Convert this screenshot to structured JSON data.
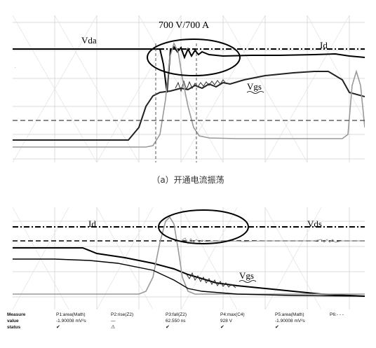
{
  "chart_data": [
    {
      "type": "line",
      "annotation": "700 V/700 A",
      "series": [
        {
          "name": "Vda",
          "points": [
            [
              0,
              0.13
            ],
            [
              1,
              0.13
            ],
            [
              2,
              0.13
            ],
            [
              3,
              0.13
            ],
            [
              4,
              0.13
            ],
            [
              5,
              0.13
            ],
            [
              6,
              0.13
            ],
            [
              7,
              0.13
            ],
            [
              8,
              0.13
            ],
            [
              9,
              0.13
            ]
          ]
        },
        {
          "name": "Id",
          "points": []
        },
        {
          "name": "Vgs",
          "points": []
        }
      ],
      "caption": "（a）开通电流振荡"
    },
    {
      "type": "line",
      "series": [
        {
          "name": "Id",
          "points": []
        },
        {
          "name": "Vds",
          "points": []
        },
        {
          "name": "Vgs",
          "points": []
        }
      ]
    }
  ],
  "measure": {
    "headers": [
      "Measure",
      "P1:area(Math)",
      "P2:rise(Z2)",
      "P3:fall(Z2)",
      "P4:max(C4)",
      "P5:area(Math)",
      "P6:- - -"
    ],
    "value": [
      "value",
      "-1.90008 mV²s",
      "—",
      "62.550 ns",
      "928 V",
      "-1.90008 mV²s",
      ""
    ],
    "status": [
      "status",
      "✔",
      "⚠",
      "✔",
      "✔",
      "✔",
      ""
    ]
  }
}
